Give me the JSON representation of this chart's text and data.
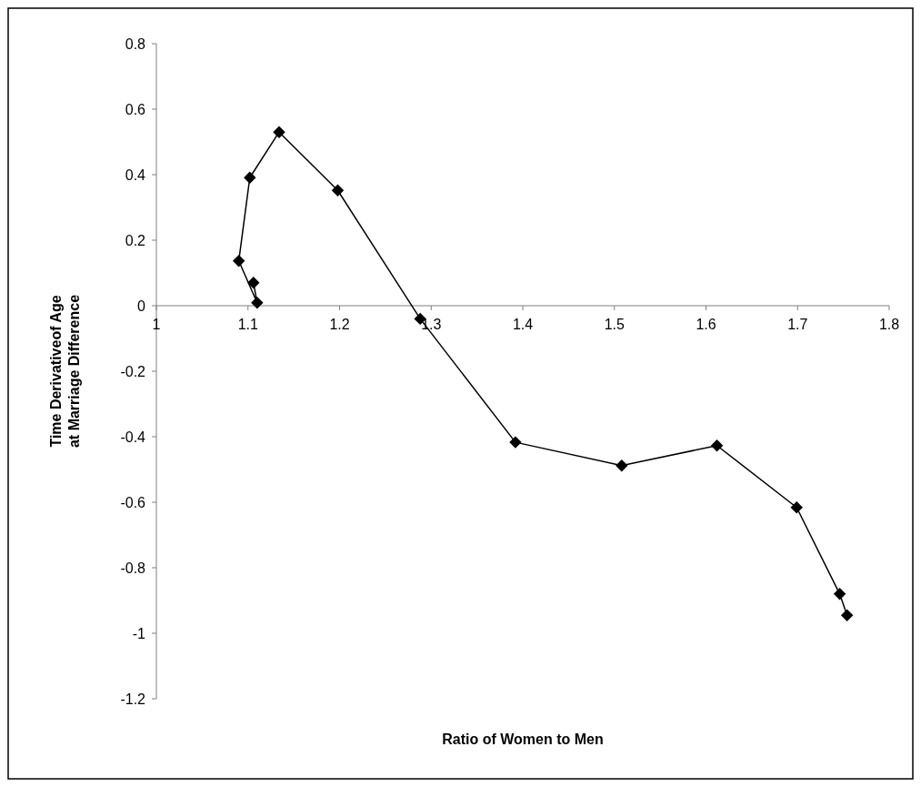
{
  "chart_data": {
    "type": "line",
    "xlabel": "Ratio of Women to Men",
    "ylabel": "Time Derivativeof Age\nat Marriage Difference",
    "xlim": [
      1,
      1.8
    ],
    "xticks": [
      1,
      1.1,
      1.2,
      1.3,
      1.4,
      1.5,
      1.6,
      1.7,
      1.8
    ],
    "ylim": [
      -1.2,
      0.8
    ],
    "yticks": [
      -1.2,
      -1,
      -0.8,
      -0.6,
      -0.4,
      -0.2,
      0,
      0.2,
      0.4,
      0.6,
      0.8
    ],
    "marker": "diamond",
    "grid": false,
    "series": [
      {
        "color": "#000000",
        "x": [
          1.106,
          1.11,
          1.09,
          1.102,
          1.134,
          1.198,
          1.288,
          1.392,
          1.508,
          1.612,
          1.699,
          1.746,
          1.754
        ],
        "values": [
          0.07,
          0.009,
          0.137,
          0.391,
          0.53,
          0.352,
          -0.04,
          -0.417,
          -0.488,
          -0.427,
          -0.616,
          -0.88,
          -0.945
        ]
      }
    ]
  }
}
